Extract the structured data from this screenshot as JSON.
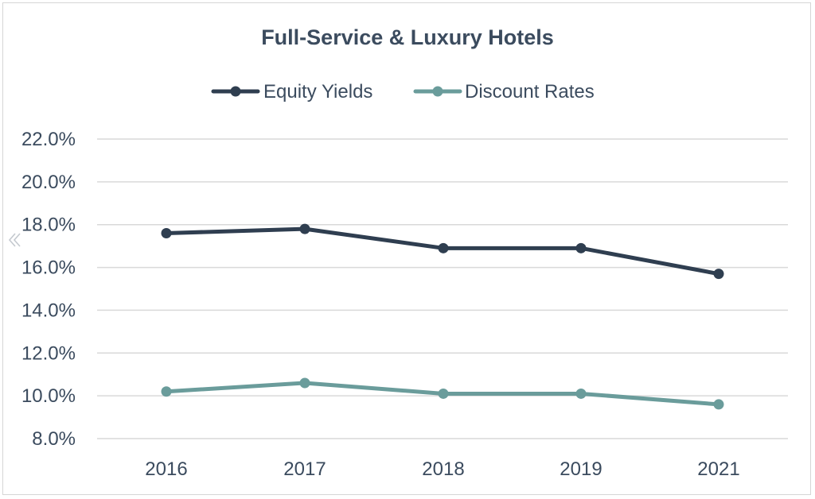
{
  "chart_data": {
    "type": "line",
    "title": "Full-Service & Luxury Hotels",
    "categories": [
      "2016",
      "2017",
      "2018",
      "2019",
      "2021"
    ],
    "series": [
      {
        "name": "Equity Yields",
        "color": "#2f3e50",
        "values": [
          17.6,
          17.8,
          16.9,
          16.9,
          15.7
        ]
      },
      {
        "name": "Discount Rates",
        "color": "#6a9c9b",
        "values": [
          10.2,
          10.6,
          10.1,
          10.1,
          9.6
        ]
      }
    ],
    "y_ticks": [
      "22.0%",
      "20.0%",
      "18.0%",
      "16.0%",
      "14.0%",
      "12.0%",
      "10.0%",
      "8.0%"
    ],
    "y_tick_values": [
      22,
      20,
      18,
      16,
      14,
      12,
      10,
      8
    ],
    "ylim": [
      8,
      22
    ],
    "grid": true,
    "legend_position": "top-center"
  },
  "ui": {
    "nav_icon": "chevron-left-double-icon"
  }
}
